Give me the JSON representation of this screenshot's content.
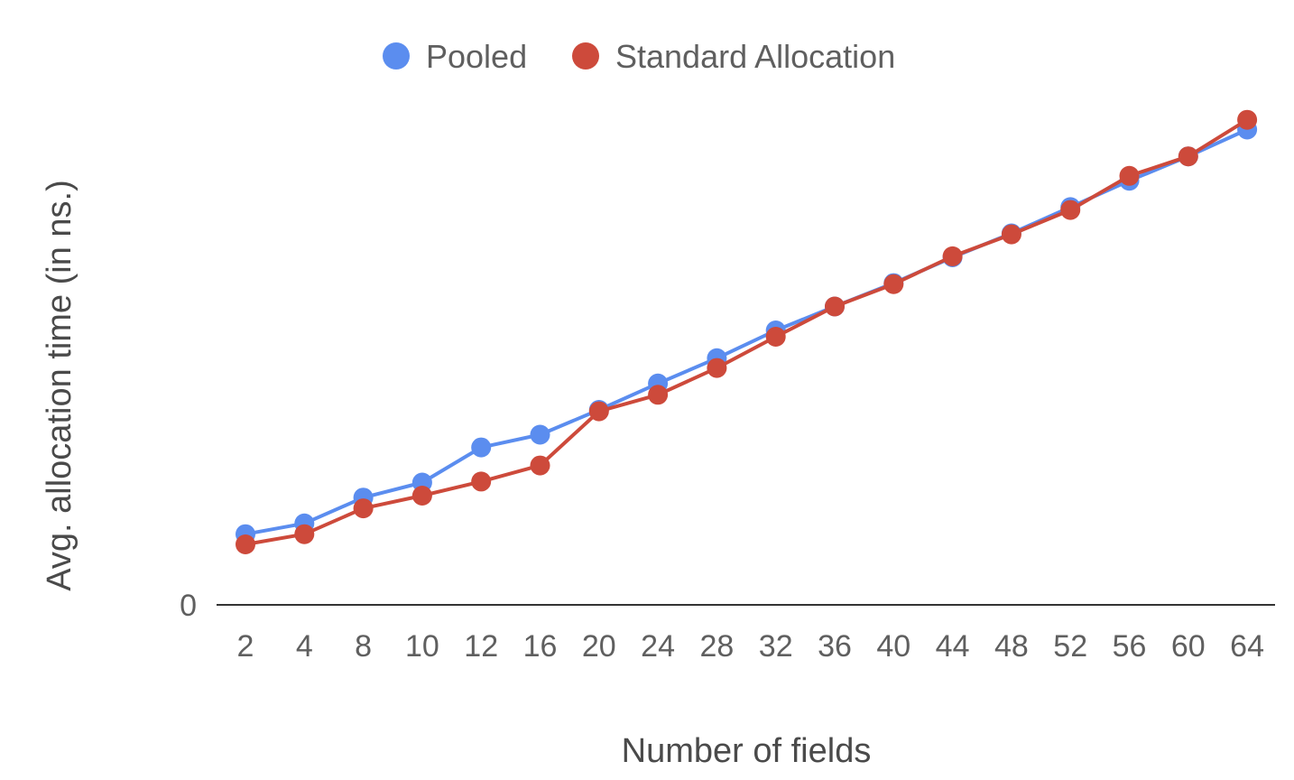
{
  "chart_data": {
    "type": "line",
    "title": "",
    "xlabel": "Number of fields",
    "ylabel": "Avg. allocation time (in ns.)",
    "categories": [
      "2",
      "4",
      "8",
      "10",
      "12",
      "16",
      "20",
      "24",
      "28",
      "32",
      "36",
      "40",
      "44",
      "48",
      "52",
      "56",
      "60",
      "64"
    ],
    "y_tick_labels": [
      "0"
    ],
    "ylim": [
      0,
      100
    ],
    "legend_position": "top",
    "grid": false,
    "series": [
      {
        "name": "Pooled",
        "color": "#5b8def",
        "values": [
          14.5,
          16.7,
          22.0,
          25.1,
          32.3,
          34.9,
          40.0,
          45.4,
          50.6,
          56.3,
          61.2,
          66.0,
          71.3,
          76.2,
          81.6,
          87.0,
          92.0,
          97.5
        ]
      },
      {
        "name": "Standard Allocation",
        "color": "#cd4a3b",
        "values": [
          12.4,
          14.5,
          19.8,
          22.4,
          25.3,
          28.6,
          39.7,
          43.1,
          48.6,
          55.0,
          61.2,
          65.8,
          71.5,
          76.0,
          81.0,
          88.0,
          92.0,
          99.5
        ]
      }
    ]
  }
}
